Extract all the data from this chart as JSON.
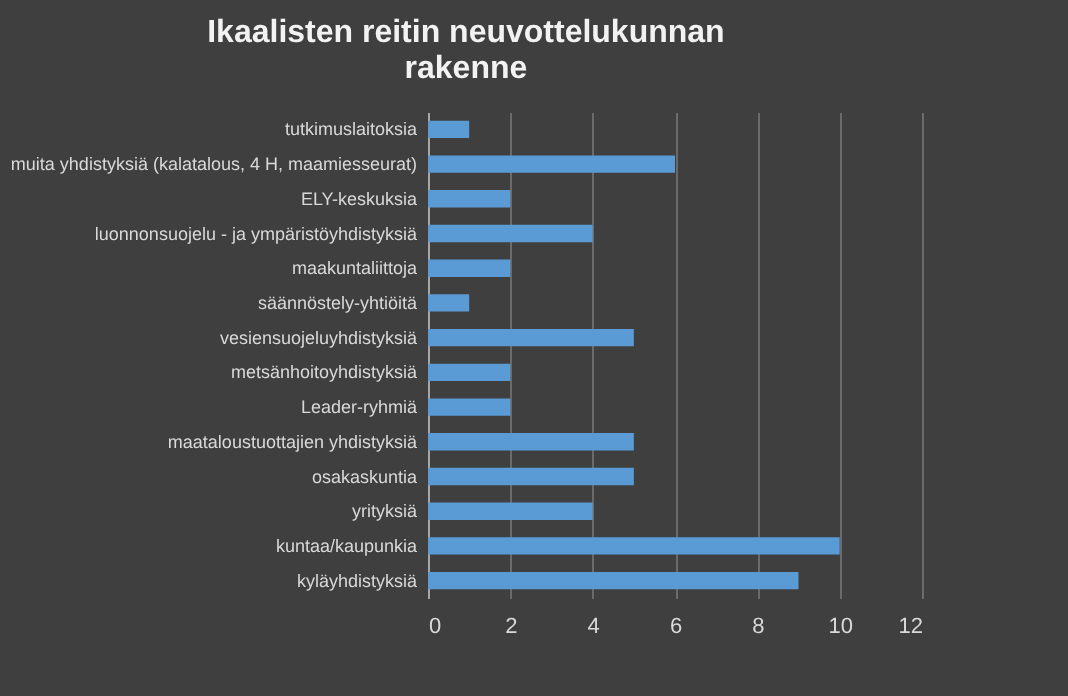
{
  "chart_data": {
    "type": "bar",
    "orientation": "horizontal",
    "title": "Ikaalisten reitin neuvottelukunnan rakenne",
    "categories": [
      "tutkimuslaitoksia",
      "muita yhdistyksiä (kalatalous, 4 H, maamiesseurat)",
      "ELY-keskuksia",
      "luonnonsuojelu - ja ympäristöyhdistyksiä",
      "maakuntaliittoja",
      "säännöstely-yhtiöitä",
      "vesiensuojeluyhdistyksiä",
      "metsänhoitoyhdistyksiä",
      "Leader-ryhmiä",
      "maataloustuottajien yhdistyksiä",
      "osakaskuntia",
      "yrityksiä",
      "kuntaa/kaupunkia",
      "kyläyhdistyksiä"
    ],
    "values": [
      1,
      6,
      2,
      4,
      2,
      1,
      5,
      2,
      2,
      5,
      5,
      4,
      10,
      9
    ],
    "color": "#5b9bd5",
    "xlim": [
      0,
      12
    ],
    "xticks": [
      0,
      2,
      4,
      6,
      8,
      10,
      12
    ],
    "grid": "x"
  }
}
